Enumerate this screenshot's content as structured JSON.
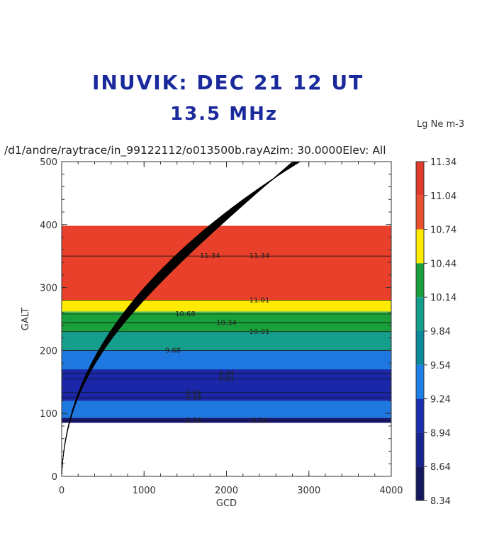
{
  "handwritten": {
    "line1": "INUVIK:  DEC 21   12 UT",
    "line2": "13.5  MHz"
  },
  "title": "/d1/andre/raytrace/in_99122112/o013500b.rayAzim: 30.0000Elev: All",
  "colorbar_label": "Lg Ne m-3",
  "chart_data": {
    "type": "heatmap",
    "xlabel": "GCD",
    "ylabel": "GALT",
    "xlim": [
      0,
      4000
    ],
    "ylim": [
      0,
      500
    ],
    "x_ticks": [
      0,
      1000,
      2000,
      3000,
      4000
    ],
    "y_ticks": [
      0,
      100,
      200,
      300,
      400,
      500
    ],
    "bands": [
      {
        "y0": 85,
        "y1": 93,
        "color": "#1a1870"
      },
      {
        "y0": 93,
        "y1": 120,
        "color": "#1f78e0"
      },
      {
        "y0": 120,
        "y1": 170,
        "color": "#1a27a8"
      },
      {
        "y0": 170,
        "y1": 200,
        "color": "#1f78e0"
      },
      {
        "y0": 200,
        "y1": 230,
        "color": "#169e8c"
      },
      {
        "y0": 230,
        "y1": 258,
        "color": "#1aa03a"
      },
      {
        "y0": 258,
        "y1": 262,
        "color": "#3cb84a"
      },
      {
        "y0": 262,
        "y1": 280,
        "color": "#ffeb00"
      },
      {
        "y0": 280,
        "y1": 398,
        "color": "#e8402a"
      }
    ],
    "contours": [
      {
        "y": 89,
        "labels": [
          {
            "x": 1600,
            "text": "8.34"
          },
          {
            "x": 2400,
            "text": "8.34"
          }
        ]
      },
      {
        "y": 125,
        "labels": [
          {
            "x": 1600,
            "text": "9.34"
          }
        ]
      },
      {
        "y": 133,
        "labels": [
          {
            "x": 1600,
            "text": "9.01"
          }
        ]
      },
      {
        "y": 155,
        "labels": [
          {
            "x": 2000,
            "text": "9.01"
          }
        ]
      },
      {
        "y": 164,
        "labels": [
          {
            "x": 2000,
            "text": "9.34"
          }
        ]
      },
      {
        "y": 200,
        "labels": [
          {
            "x": 1350,
            "text": "9.68"
          }
        ]
      },
      {
        "y": 230,
        "labels": [
          {
            "x": 2400,
            "text": "10.01"
          }
        ]
      },
      {
        "y": 244,
        "labels": [
          {
            "x": 2000,
            "text": "10.34"
          }
        ]
      },
      {
        "y": 258,
        "labels": [
          {
            "x": 1500,
            "text": "10.68"
          }
        ]
      },
      {
        "y": 280,
        "labels": [
          {
            "x": 2400,
            "text": "11.01"
          }
        ]
      },
      {
        "y": 350,
        "labels": [
          {
            "x": 1800,
            "text": "11.34"
          },
          {
            "x": 2400,
            "text": "11.34"
          }
        ]
      }
    ],
    "rays": {
      "count": 60,
      "origin": [
        0,
        0
      ],
      "farthest_exit_x": 2800
    },
    "colorbar": {
      "min": 8.34,
      "max": 11.34,
      "ticks": [
        "11.34",
        "11.04",
        "10.74",
        "10.44",
        "10.14",
        "9.84",
        "9.54",
        "9.24",
        "8.94",
        "8.64",
        "8.34"
      ],
      "segments": [
        {
          "from": 11.04,
          "to": 11.34,
          "color": "#e03a2a"
        },
        {
          "from": 10.74,
          "to": 11.04,
          "color": "#e8502e"
        },
        {
          "from": 10.44,
          "to": 10.74,
          "color": "#ffeb00"
        },
        {
          "from": 10.14,
          "to": 10.44,
          "color": "#1aa03a"
        },
        {
          "from": 9.84,
          "to": 10.14,
          "color": "#169e8c"
        },
        {
          "from": 9.54,
          "to": 9.84,
          "color": "#0a8a9a"
        },
        {
          "from": 9.24,
          "to": 9.54,
          "color": "#1f80e8"
        },
        {
          "from": 8.94,
          "to": 9.24,
          "color": "#1a2fb0"
        },
        {
          "from": 8.64,
          "to": 8.94,
          "color": "#17238f"
        },
        {
          "from": 8.34,
          "to": 8.64,
          "color": "#141860"
        }
      ]
    }
  }
}
